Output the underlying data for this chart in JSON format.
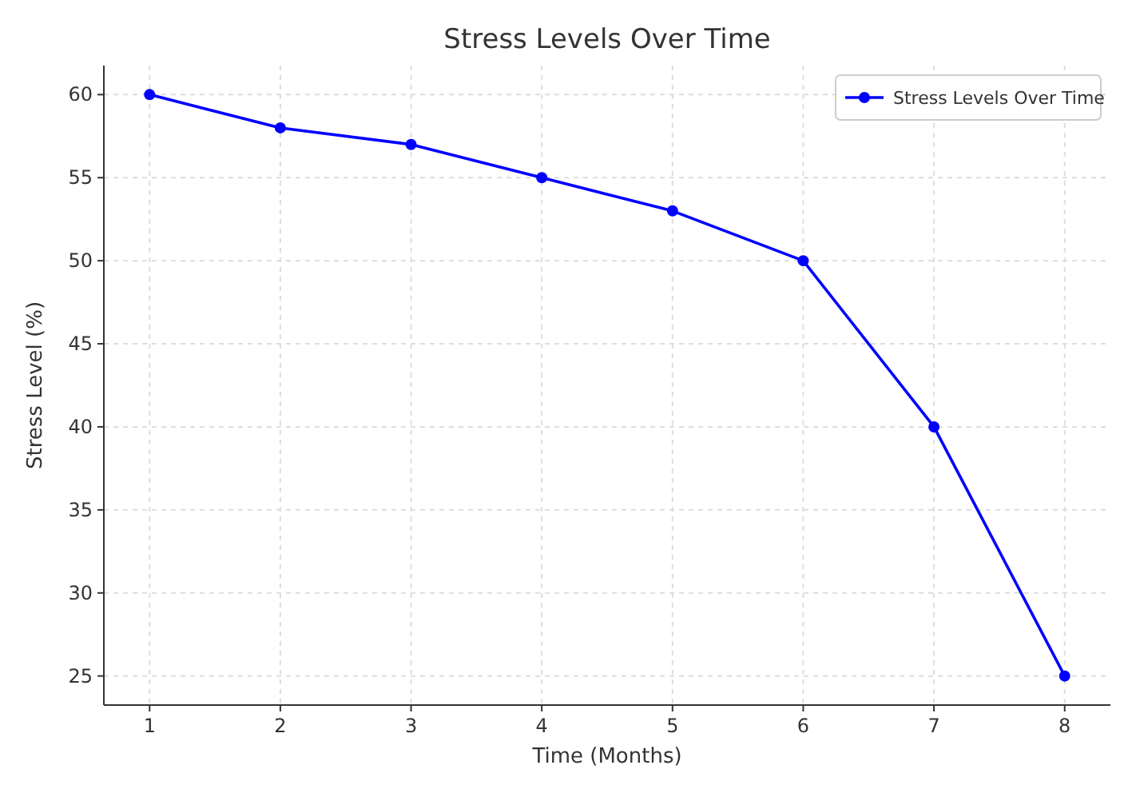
{
  "chart_data": {
    "type": "line",
    "title": "Stress Levels Over Time",
    "xlabel": "Time (Months)",
    "ylabel": "Stress Level (%)",
    "x": [
      1,
      2,
      3,
      4,
      5,
      6,
      7,
      8
    ],
    "series": [
      {
        "name": "Stress Levels Over Time",
        "color": "#0000ff",
        "values": [
          60,
          58,
          57,
          55,
          53,
          50,
          40,
          25
        ]
      }
    ],
    "xlim": [
      0.65,
      8.35
    ],
    "xticks": [
      1,
      2,
      3,
      4,
      5,
      6,
      7,
      8
    ],
    "ylim": [
      23.25,
      61.75
    ],
    "yticks": [
      25,
      30,
      35,
      40,
      45,
      50,
      55,
      60
    ],
    "grid": true,
    "legend": "top right",
    "marker": "circle",
    "line_style": "solid"
  }
}
